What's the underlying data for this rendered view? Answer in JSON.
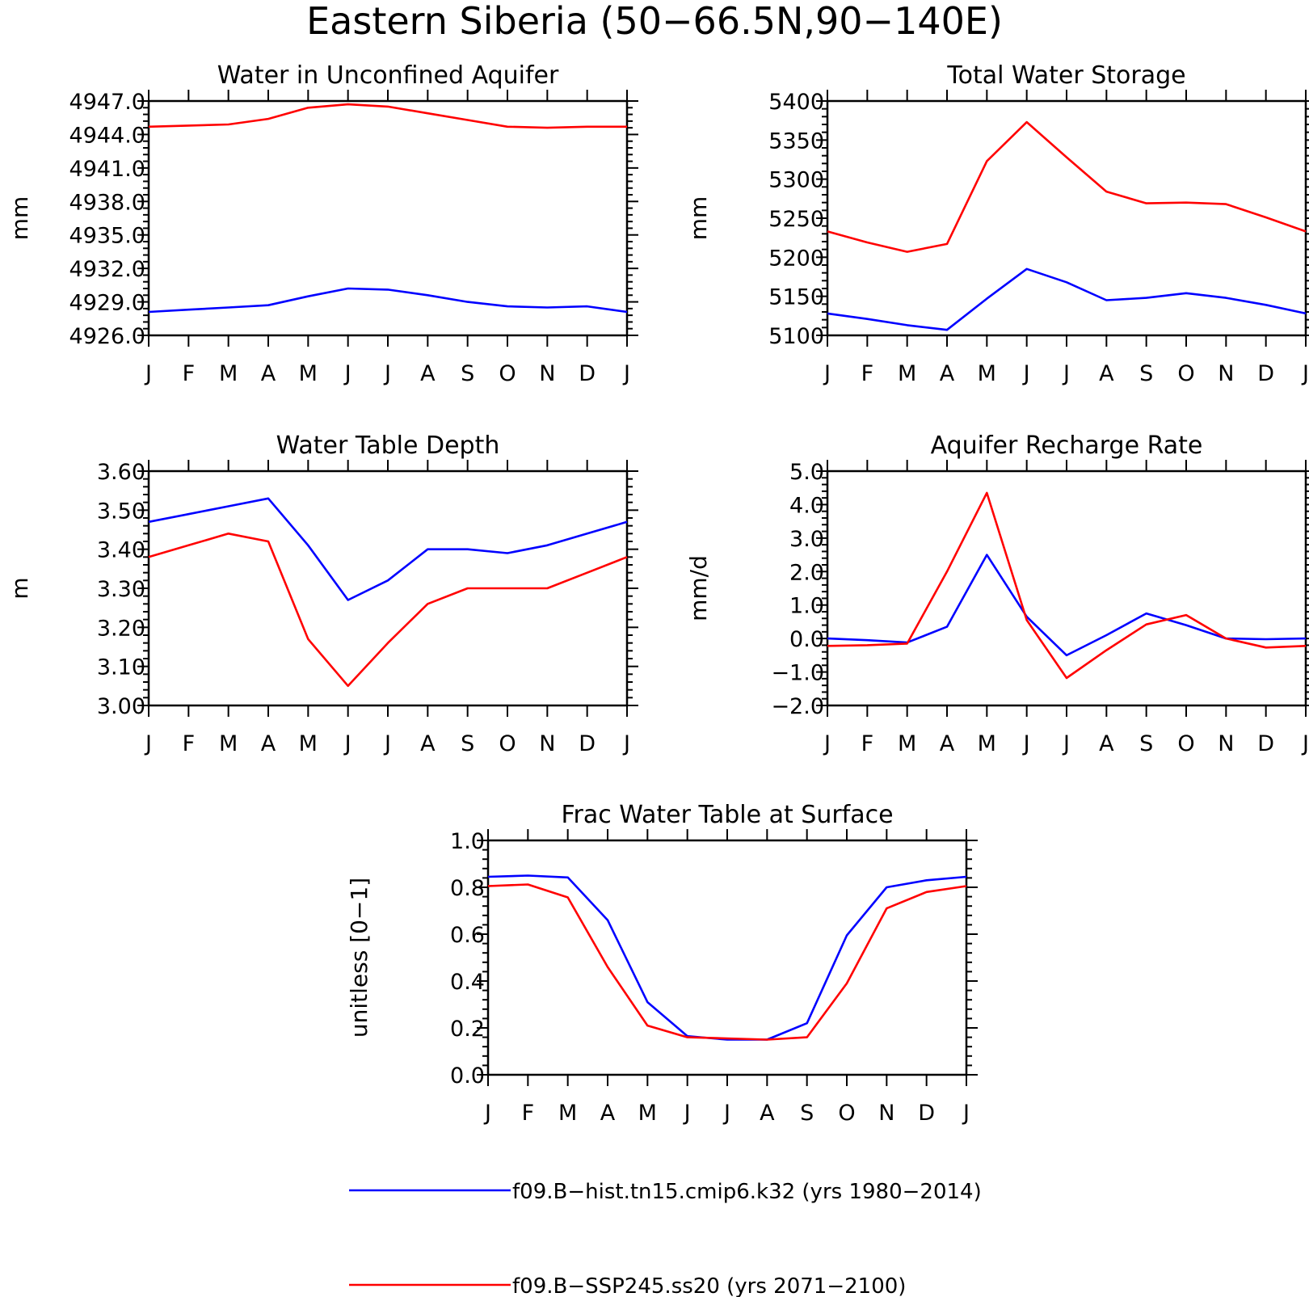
{
  "figure_title": "Eastern Siberia (50−66.5N,90−140E)",
  "chart_data": [
    {
      "type": "line",
      "title": "Water in Unconfined Aquifer",
      "ylabel": "mm",
      "xlabel": "",
      "categories": [
        "J",
        "F",
        "M",
        "A",
        "M",
        "J",
        "J",
        "A",
        "S",
        "O",
        "N",
        "D",
        "J"
      ],
      "ylim": [
        4926.0,
        4947.0
      ],
      "yticks": [
        4926.0,
        4929.0,
        4932.0,
        4935.0,
        4938.0,
        4941.0,
        4944.0,
        4947.0
      ],
      "ytick_labels": [
        "4926.0",
        "4929.0",
        "4932.0",
        "4935.0",
        "4938.0",
        "4941.0",
        "4944.0",
        "4947.0"
      ],
      "series": [
        {
          "color": "#0000ff",
          "values": [
            4928.1,
            4928.3,
            4928.5,
            4928.7,
            4929.5,
            4930.2,
            4930.1,
            4929.6,
            4929.0,
            4928.6,
            4928.5,
            4928.6,
            4928.1
          ]
        },
        {
          "color": "#ff0000",
          "values": [
            4944.7,
            4944.8,
            4944.9,
            4945.4,
            4946.4,
            4946.7,
            4946.5,
            4945.9,
            4945.3,
            4944.7,
            4944.6,
            4944.7,
            4944.7
          ]
        }
      ]
    },
    {
      "type": "line",
      "title": "Total Water Storage",
      "ylabel": "mm",
      "xlabel": "",
      "categories": [
        "J",
        "F",
        "M",
        "A",
        "M",
        "J",
        "J",
        "A",
        "S",
        "O",
        "N",
        "D",
        "J"
      ],
      "ylim": [
        5100,
        5400
      ],
      "yticks": [
        5100,
        5150,
        5200,
        5250,
        5300,
        5350,
        5400
      ],
      "ytick_labels": [
        "5100",
        "5150",
        "5200",
        "5250",
        "5300",
        "5350",
        "5400"
      ],
      "series": [
        {
          "color": "#0000ff",
          "values": [
            5128,
            5121,
            5113,
            5107,
            5147,
            5185,
            5168,
            5145,
            5148,
            5154,
            5148,
            5139,
            5128
          ]
        },
        {
          "color": "#ff0000",
          "values": [
            5233,
            5219,
            5207,
            5217,
            5323,
            5373,
            5328,
            5284,
            5269,
            5270,
            5268,
            5251,
            5233
          ]
        }
      ]
    },
    {
      "type": "line",
      "title": "Water Table Depth",
      "ylabel": "m",
      "xlabel": "",
      "categories": [
        "J",
        "F",
        "M",
        "A",
        "M",
        "J",
        "J",
        "A",
        "S",
        "O",
        "N",
        "D",
        "J"
      ],
      "ylim": [
        3.0,
        3.6
      ],
      "yticks": [
        3.0,
        3.1,
        3.2,
        3.3,
        3.4,
        3.5,
        3.6
      ],
      "ytick_labels": [
        "3.00",
        "3.10",
        "3.20",
        "3.30",
        "3.40",
        "3.50",
        "3.60"
      ],
      "series": [
        {
          "color": "#0000ff",
          "values": [
            3.47,
            3.49,
            3.51,
            3.53,
            3.41,
            3.27,
            3.32,
            3.4,
            3.4,
            3.39,
            3.41,
            3.44,
            3.47
          ]
        },
        {
          "color": "#ff0000",
          "values": [
            3.38,
            3.41,
            3.44,
            3.42,
            3.17,
            3.05,
            3.16,
            3.26,
            3.3,
            3.3,
            3.3,
            3.34,
            3.38
          ]
        }
      ]
    },
    {
      "type": "line",
      "title": "Aquifer Recharge Rate",
      "ylabel": "mm/d",
      "xlabel": "",
      "categories": [
        "J",
        "F",
        "M",
        "A",
        "M",
        "J",
        "J",
        "A",
        "S",
        "O",
        "N",
        "D",
        "J"
      ],
      "ylim": [
        -2.0,
        5.0
      ],
      "yticks": [
        -2.0,
        -1.0,
        0.0,
        1.0,
        2.0,
        3.0,
        4.0,
        5.0
      ],
      "ytick_labels": [
        "−2.0",
        "−1.0",
        "0.0",
        "1.0",
        "2.0",
        "3.0",
        "4.0",
        "5.0"
      ],
      "series": [
        {
          "color": "#0000ff",
          "values": [
            0.0,
            -0.05,
            -0.12,
            0.35,
            2.5,
            0.65,
            -0.5,
            0.1,
            0.75,
            0.4,
            0.0,
            -0.02,
            0.0
          ]
        },
        {
          "color": "#ff0000",
          "values": [
            -0.22,
            -0.2,
            -0.15,
            2.0,
            4.35,
            0.55,
            -1.18,
            -0.35,
            0.42,
            0.7,
            0.0,
            -0.27,
            -0.22
          ]
        }
      ]
    },
    {
      "type": "line",
      "title": "Frac Water Table at Surface",
      "ylabel": "unitless [0−1]",
      "xlabel": "",
      "categories": [
        "J",
        "F",
        "M",
        "A",
        "M",
        "J",
        "J",
        "A",
        "S",
        "O",
        "N",
        "D",
        "J"
      ],
      "ylim": [
        0.0,
        1.0
      ],
      "yticks": [
        0.0,
        0.2,
        0.4,
        0.6,
        0.8,
        1.0
      ],
      "ytick_labels": [
        "0.0",
        "0.2",
        "0.4",
        "0.6",
        "0.8",
        "1.0"
      ],
      "series": [
        {
          "color": "#0000ff",
          "values": [
            0.845,
            0.85,
            0.842,
            0.66,
            0.31,
            0.165,
            0.15,
            0.15,
            0.22,
            0.595,
            0.8,
            0.83,
            0.845
          ]
        },
        {
          "color": "#ff0000",
          "values": [
            0.805,
            0.812,
            0.757,
            0.46,
            0.21,
            0.16,
            0.155,
            0.15,
            0.16,
            0.39,
            0.71,
            0.78,
            0.805
          ]
        }
      ]
    }
  ],
  "legend": [
    {
      "label": "f09.B−hist.tn15.cmip6.k32 (yrs 1980−2014)",
      "color": "#0000ff"
    },
    {
      "label": "f09.B−SSP245.ss20 (yrs 2071−2100)",
      "color": "#ff0000"
    }
  ]
}
